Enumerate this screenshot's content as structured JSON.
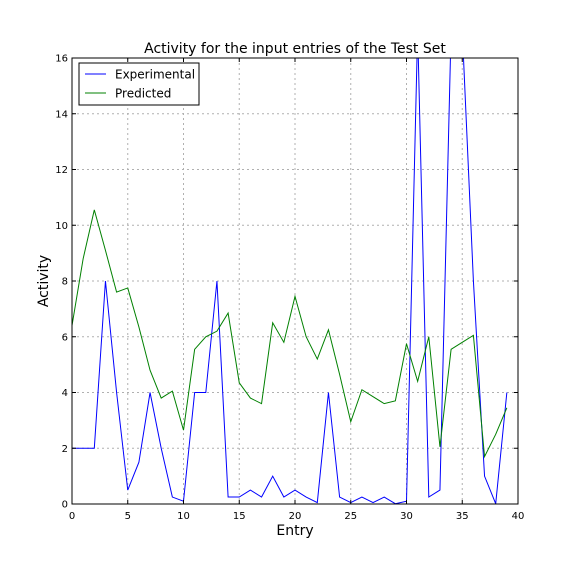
{
  "chart_data": {
    "type": "line",
    "title": "Activity for the input entries of the Test Set",
    "xlabel": "Entry",
    "ylabel": "Activity",
    "xlim": [
      0,
      40
    ],
    "ylim": [
      0,
      16
    ],
    "x_ticks": [
      0,
      5,
      10,
      15,
      20,
      25,
      30,
      35,
      40
    ],
    "y_ticks": [
      0,
      2,
      4,
      6,
      8,
      10,
      12,
      14,
      16
    ],
    "grid": true,
    "legend_position": "top-left",
    "x": [
      0,
      1,
      2,
      3,
      4,
      5,
      6,
      7,
      8,
      9,
      10,
      11,
      12,
      13,
      14,
      15,
      16,
      17,
      18,
      19,
      20,
      21,
      22,
      23,
      24,
      25,
      26,
      27,
      28,
      29,
      30,
      31,
      32,
      33,
      34,
      35,
      36,
      37,
      38,
      39
    ],
    "series": [
      {
        "name": "Experimental",
        "color": "#0000ff",
        "values": [
          2.0,
          2.0,
          2.0,
          8.0,
          4.0,
          0.5,
          1.5,
          4.0,
          2.0,
          0.25,
          0.1,
          4.0,
          4.0,
          8.0,
          0.25,
          0.25,
          0.5,
          0.25,
          1.0,
          0.25,
          0.5,
          0.25,
          0.05,
          4.0,
          0.25,
          0.05,
          0.25,
          0.05,
          0.25,
          0.01,
          0.1,
          17.0,
          0.25,
          0.5,
          17.0,
          17.0,
          8.0,
          1.0,
          0.01,
          4.0
        ]
      },
      {
        "name": "Predicted",
        "color": "#008000",
        "values": [
          6.4,
          8.8,
          10.55,
          9.1,
          7.6,
          7.75,
          6.35,
          4.8,
          3.8,
          4.05,
          2.65,
          5.55,
          6.0,
          6.2,
          6.85,
          4.35,
          3.8,
          3.6,
          6.5,
          5.8,
          7.45,
          6.0,
          5.2,
          6.25,
          4.65,
          2.95,
          4.1,
          3.85,
          3.6,
          3.7,
          5.75,
          4.4,
          6.0,
          2.05,
          5.55,
          5.8,
          6.05,
          1.7,
          2.5,
          3.45
        ]
      }
    ]
  }
}
